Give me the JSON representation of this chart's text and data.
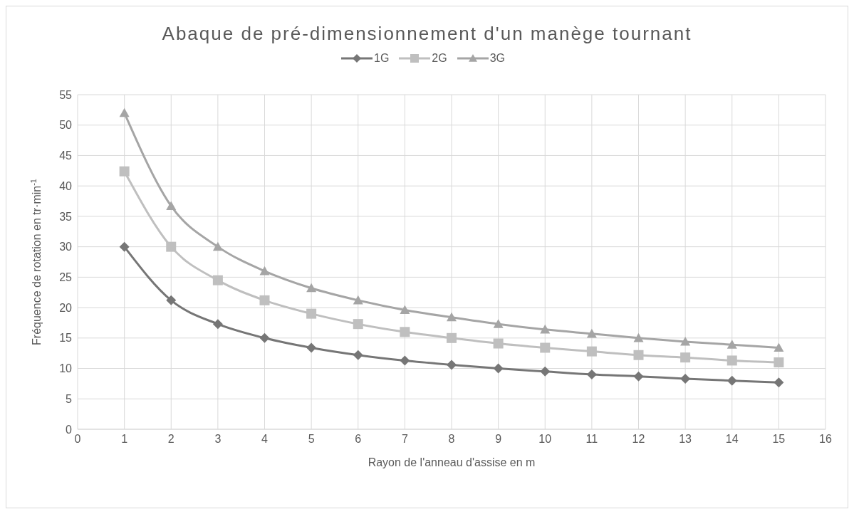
{
  "chart_data": {
    "type": "line",
    "title": "Abaque de pré-dimensionnement d'un manège tournant",
    "xlabel": "Rayon de l'anneau d'assise en m",
    "ylabel": "Fréquence de rotation en tr·min$^{-1}$",
    "x": [
      1,
      2,
      3,
      4,
      5,
      6,
      7,
      8,
      9,
      10,
      11,
      12,
      13,
      14,
      15
    ],
    "series": [
      {
        "name": "1G",
        "color": "#767676",
        "marker": "diamond",
        "values": [
          30,
          21.2,
          17.3,
          15,
          13.4,
          12.2,
          11.3,
          10.6,
          10,
          9.5,
          9,
          8.7,
          8.3,
          8,
          7.7
        ]
      },
      {
        "name": "2G",
        "color": "#bfbfbf",
        "marker": "square",
        "values": [
          42.4,
          30,
          24.5,
          21.2,
          19,
          17.3,
          16,
          15,
          14.1,
          13.4,
          12.8,
          12.2,
          11.8,
          11.3,
          11
        ]
      },
      {
        "name": "3G",
        "color": "#a5a5a5",
        "marker": "triangle",
        "values": [
          52,
          36.7,
          30,
          26,
          23.2,
          21.2,
          19.6,
          18.4,
          17.3,
          16.4,
          15.7,
          15,
          14.4,
          13.9,
          13.4
        ]
      }
    ],
    "xlim": [
      0,
      16
    ],
    "xticks": [
      0,
      1,
      2,
      3,
      4,
      5,
      6,
      7,
      8,
      9,
      10,
      11,
      12,
      13,
      14,
      15,
      16
    ],
    "ylim": [
      0,
      55
    ],
    "yticks": [
      0,
      5,
      10,
      15,
      20,
      25,
      30,
      35,
      40,
      45,
      50,
      55
    ],
    "grid": true,
    "legend": "top",
    "line_style": "solid"
  }
}
